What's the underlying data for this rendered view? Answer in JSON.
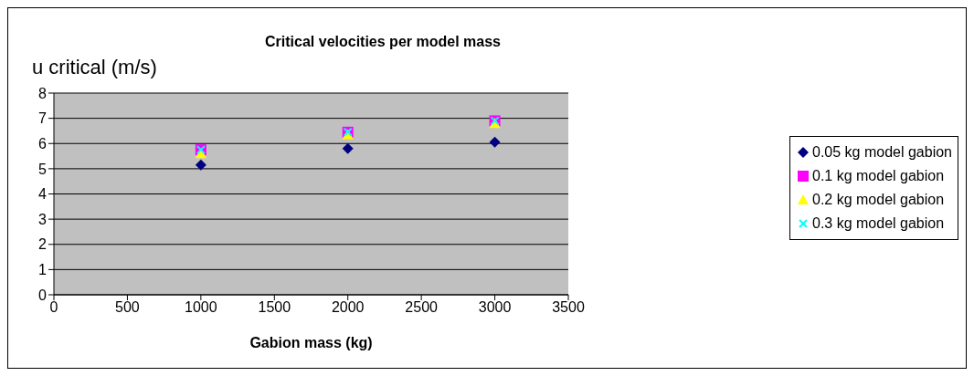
{
  "chart_data": {
    "type": "scatter",
    "title": "Critical velocities per model mass",
    "xlabel": "Gabion mass (kg)",
    "ylabel": "u critical (m/s)",
    "x": [
      1000,
      2000,
      3000
    ],
    "series": [
      {
        "name": "0.05 kg model gabion",
        "color": "#000080",
        "marker": "diamond",
        "values": [
          5.15,
          5.8,
          6.05
        ]
      },
      {
        "name": "0.1 kg model gabion",
        "color": "#ff00ff",
        "marker": "square",
        "values": [
          5.75,
          6.45,
          6.9
        ]
      },
      {
        "name": "0.2 kg model gabion",
        "color": "#ffff00",
        "marker": "triangle",
        "values": [
          5.6,
          6.35,
          6.8
        ]
      },
      {
        "name": "0.3 kg model gabion",
        "color": "#00ffff",
        "marker": "cross",
        "values": [
          5.75,
          6.45,
          6.9
        ]
      }
    ],
    "xlim": [
      0,
      3500
    ],
    "xticks": [
      0,
      500,
      1000,
      1500,
      2000,
      2500,
      3000,
      3500
    ],
    "ylim": [
      0,
      8
    ],
    "yticks": [
      0,
      1,
      2,
      3,
      4,
      5,
      6,
      7,
      8
    ],
    "grid": "y",
    "legend": "right"
  }
}
